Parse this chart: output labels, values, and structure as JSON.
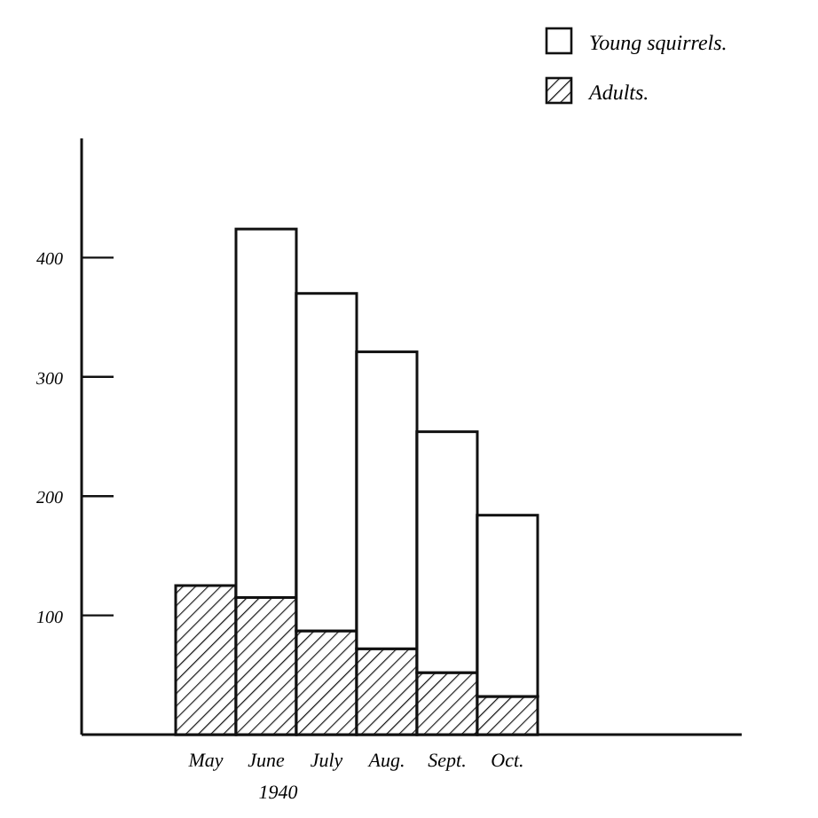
{
  "chart_data": {
    "type": "bar",
    "stacked": true,
    "xlabel": "1940",
    "categories": [
      "May",
      "June",
      "July",
      "Aug.",
      "Sept.",
      "Oct."
    ],
    "series": [
      {
        "name": "Adults.",
        "color": "#111111",
        "values": [
          125,
          115,
          87,
          72,
          52,
          32
        ]
      },
      {
        "name": "Young squirrels.",
        "color": "#ffffff",
        "values": [
          null,
          309,
          283,
          249,
          202,
          152
        ]
      }
    ],
    "ylim": [
      0,
      500
    ],
    "yticks": [
      {
        "value": 100,
        "label": "100"
      },
      {
        "value": 200,
        "label": "200"
      },
      {
        "value": 300,
        "label": "300"
      },
      {
        "value": 400,
        "label": "400"
      }
    ],
    "legend": "top right",
    "grid": false
  }
}
